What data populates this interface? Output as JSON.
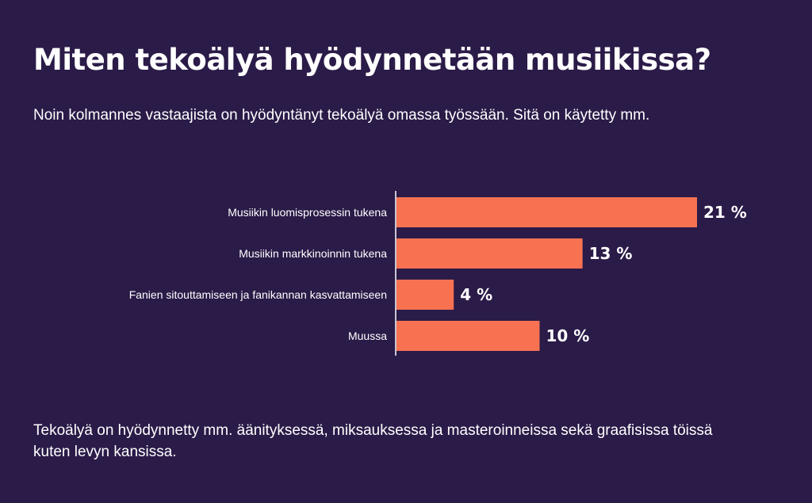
{
  "header": {
    "title": "Miten tekoälyä hyödynnetään musiikissa?",
    "subtitle": "Noin kolmannes vastaajista on hyödyntänyt tekoälyä omassa työssään. Sitä on käytetty mm."
  },
  "footer": {
    "text": "Tekoälyä on hyödynnetty mm. äänityksessä, miksauksessa ja masteroinneissa sekä graafisissa töissä kuten levyn kansissa."
  },
  "colors": {
    "background": "#2b1b48",
    "bar": "#f87252",
    "text": "#ffffff"
  },
  "chart_data": {
    "type": "bar",
    "orientation": "horizontal",
    "categories": [
      "Musiikin luomisprosessin tukena",
      "Musiikin markkinoinnin tukena",
      "Fanien sitouttamiseen ja fanikannan kasvattamiseen",
      "Muussa"
    ],
    "values": [
      21,
      13,
      4,
      10
    ],
    "value_labels": [
      "21 %",
      "13 %",
      "4 %",
      "10 %"
    ],
    "unit": "%",
    "xlim": [
      0,
      21
    ],
    "grid": false,
    "legend": "none"
  }
}
